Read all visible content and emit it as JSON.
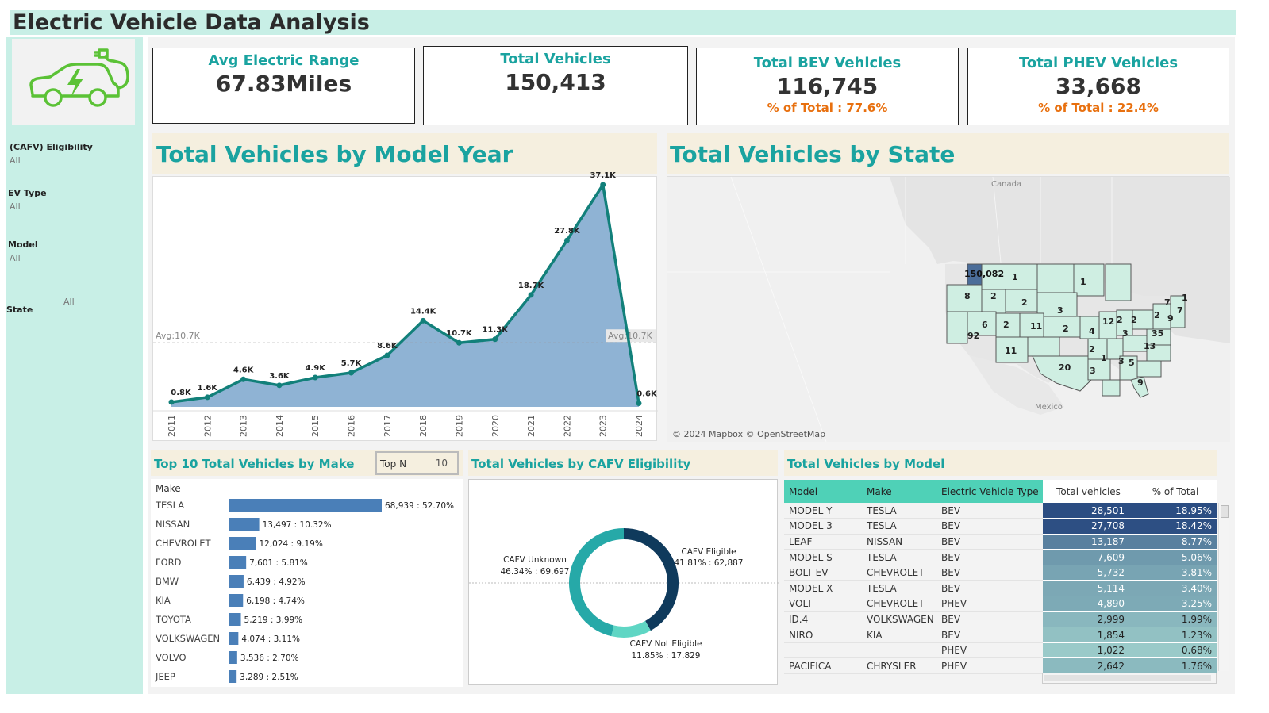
{
  "dashboard_title": "Electric Vehicle Data Analysis",
  "logo_icon": "ev-car-charging-icon",
  "filters": [
    {
      "label": "(CAFV) Eligibility",
      "value": "All"
    },
    {
      "label": "EV Type",
      "value": "All"
    },
    {
      "label": "Model",
      "value": "All"
    },
    {
      "label": "State",
      "value": "All"
    }
  ],
  "kpis": {
    "avg_range": {
      "title": "Avg Electric Range",
      "value": "67.83Miles"
    },
    "total": {
      "title": "Total Vehicles",
      "value": "150,413"
    },
    "bev": {
      "title": "Total BEV Vehicles",
      "value": "116,745",
      "pct": "% of Total : 77.6%"
    },
    "phev": {
      "title": "Total PHEV Vehicles",
      "value": "33,668",
      "pct": "% of Total : 22.4%"
    }
  },
  "colors": {
    "accent": "#1aa3a0",
    "area_fill": "#8fb3d4",
    "line": "#12807a",
    "bar": "#4a7fb8",
    "kpi_pct": "#e8700f",
    "sidebar_bg": "#c8efe6"
  },
  "year_chart": {
    "title": "Total Vehicles by Model Year",
    "avg_label": "Avg:10.7K",
    "chart_data": {
      "type": "area",
      "x": [
        "2011",
        "2012",
        "2013",
        "2014",
        "2015",
        "2016",
        "2017",
        "2018",
        "2019",
        "2020",
        "2021",
        "2022",
        "2023",
        "2024"
      ],
      "values": [
        0.8,
        1.6,
        4.6,
        3.6,
        4.9,
        5.7,
        8.6,
        14.4,
        10.7,
        11.3,
        18.7,
        27.8,
        37.1,
        0.6
      ],
      "labels": [
        "0.8K",
        "1.6K",
        "4.6K",
        "3.6K",
        "4.9K",
        "5.7K",
        "8.6K",
        "14.4K",
        "10.7K",
        "11.3K",
        "18.7K",
        "27.8K",
        "37.1K",
        "0.6K"
      ],
      "ylim": [
        0,
        37.1
      ],
      "average": 10.7
    }
  },
  "map": {
    "title": "Total Vehicles by State",
    "labels": {
      "canada": "Canada",
      "mexico": "Mexico",
      "credit": "© 2024 Mapbox © OpenStreetMap"
    },
    "state_values": [
      "150,082",
      "1",
      "1",
      "8",
      "2",
      "2",
      "6",
      "2",
      "11",
      "3",
      "2",
      "92",
      "4",
      "11",
      "12",
      "2",
      "2",
      "7",
      "1",
      "3",
      "35",
      "13",
      "20",
      "2",
      "1",
      "3",
      "5",
      "3",
      "9",
      "7",
      "2",
      "9"
    ]
  },
  "make_chart": {
    "title": "Top 10 Total Vehicles by Make",
    "column_header": "Make",
    "topn_label": "Top N",
    "topn_value": "10",
    "chart_data": {
      "type": "bar",
      "categories": [
        "TESLA",
        "NISSAN",
        "CHEVROLET",
        "FORD",
        "BMW",
        "KIA",
        "TOYOTA",
        "VOLKSWAGEN",
        "VOLVO",
        "JEEP"
      ],
      "values": [
        68939,
        13497,
        12024,
        7601,
        6439,
        6198,
        5219,
        4074,
        3536,
        3289
      ],
      "labels": [
        "68,939 : 52.70%",
        "13,497 : 10.32%",
        "12,024 : 9.19%",
        "7,601 : 5.81%",
        "6,439 : 4.92%",
        "6,198 : 4.74%",
        "5,219 : 3.99%",
        "4,074 : 3.11%",
        "3,536 : 2.70%",
        "3,289 : 2.51%"
      ]
    }
  },
  "cafv_chart": {
    "title": "Total Vehicles by CAFV Eligibility",
    "chart_data": {
      "type": "pie",
      "slices": [
        {
          "name": "CAFV Eligible",
          "value": 62887,
          "pct": 41.81,
          "label": "41.81% : 62,887",
          "color": "#0f3a5c"
        },
        {
          "name": "CAFV Not Eligible",
          "value": 17829,
          "pct": 11.85,
          "label": "11.85% : 17,829",
          "color": "#5fd6c4"
        },
        {
          "name": "CAFV Unknown",
          "value": 69697,
          "pct": 46.34,
          "label": "46.34% : 69,697",
          "color": "#26a9a8"
        }
      ]
    }
  },
  "model_table": {
    "title": "Total Vehicles by Model",
    "headers": [
      "Model",
      "Make",
      "Electric Vehicle Type",
      "Total vehicles",
      "% of Total"
    ],
    "rows": [
      {
        "model": "MODEL Y",
        "make": "TESLA",
        "type": "BEV",
        "total": "28,501",
        "pct": "18.95%",
        "share": 18.95
      },
      {
        "model": "MODEL 3",
        "make": "TESLA",
        "type": "BEV",
        "total": "27,708",
        "pct": "18.42%",
        "share": 18.42
      },
      {
        "model": "LEAF",
        "make": "NISSAN",
        "type": "BEV",
        "total": "13,187",
        "pct": "8.77%",
        "share": 8.77
      },
      {
        "model": "MODEL S",
        "make": "TESLA",
        "type": "BEV",
        "total": "7,609",
        "pct": "5.06%",
        "share": 5.06
      },
      {
        "model": "BOLT EV",
        "make": "CHEVROLET",
        "type": "BEV",
        "total": "5,732",
        "pct": "3.81%",
        "share": 3.81
      },
      {
        "model": "MODEL X",
        "make": "TESLA",
        "type": "BEV",
        "total": "5,114",
        "pct": "3.40%",
        "share": 3.4
      },
      {
        "model": "VOLT",
        "make": "CHEVROLET",
        "type": "PHEV",
        "total": "4,890",
        "pct": "3.25%",
        "share": 3.25
      },
      {
        "model": "ID.4",
        "make": "VOLKSWAGEN",
        "type": "BEV",
        "total": "2,999",
        "pct": "1.99%",
        "share": 1.99
      },
      {
        "model": "NIRO",
        "make": "KIA",
        "type": "BEV",
        "total": "1,854",
        "pct": "1.23%",
        "share": 1.23
      },
      {
        "model": "",
        "make": "",
        "type": "PHEV",
        "total": "1,022",
        "pct": "0.68%",
        "share": 0.68
      },
      {
        "model": "PACIFICA",
        "make": "CHRYSLER",
        "type": "PHEV",
        "total": "2,642",
        "pct": "1.76%",
        "share": 1.76
      }
    ]
  }
}
